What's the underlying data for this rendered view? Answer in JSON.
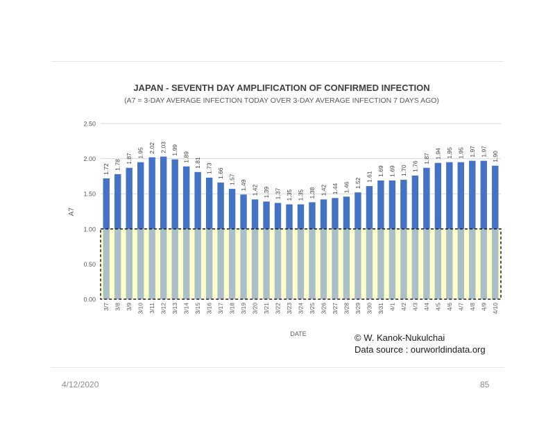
{
  "slide": {
    "date": "4/12/2020",
    "page_number": "85"
  },
  "credits": {
    "author": "© W. Kanok-Nukulchai",
    "source": "Data source : ourworldindata.org"
  },
  "colors": {
    "bar": "#4472C4",
    "threshold_fill": "#FFFFCC",
    "text": "#595959",
    "title": "#404040",
    "gridline": "#d9d9d9"
  },
  "chart_data": {
    "type": "bar",
    "title": "JAPAN  - SEVENTH DAY AMPLIFICATION OF CONFIRMED INFECTION",
    "subtitle": "(A7 = 3-DAY AVERAGE INFECTION TODAY OVER 3-DAY AVERAGE INFECTION 7 DAYS AGO)",
    "xlabel": "DATE",
    "ylabel": "A7",
    "ylim": [
      0,
      2.5
    ],
    "yticks": [
      "0.00",
      "0.50",
      "1.00",
      "1.50",
      "2.00",
      "2.50"
    ],
    "grid": true,
    "threshold": 1.0,
    "categories": [
      "3/7",
      "3/8",
      "3/9",
      "3/10",
      "3/11",
      "3/12",
      "3/13",
      "3/14",
      "3/15",
      "3/16",
      "3/17",
      "3/18",
      "3/19",
      "3/20",
      "3/21",
      "3/22",
      "3/23",
      "3/24",
      "3/25",
      "3/26",
      "3/27",
      "3/28",
      "3/29",
      "3/30",
      "3/31",
      "4/1",
      "4/2",
      "4/3",
      "4/4",
      "4/5",
      "4/6",
      "4/7",
      "4/8",
      "4/9",
      "4/10"
    ],
    "values": [
      1.72,
      1.78,
      1.87,
      1.95,
      2.02,
      2.03,
      1.99,
      1.89,
      1.81,
      1.73,
      1.66,
      1.57,
      1.49,
      1.42,
      1.39,
      1.37,
      1.35,
      1.35,
      1.38,
      1.42,
      1.44,
      1.46,
      1.52,
      1.61,
      1.69,
      1.69,
      1.7,
      1.76,
      1.87,
      1.94,
      1.95,
      1.95,
      1.97,
      1.97,
      1.9
    ],
    "labels": [
      "1.72",
      "1.78",
      "1.87",
      "1.95",
      "2.02",
      "2.03",
      "1.99",
      "1.89",
      "1.81",
      "1.73",
      "1.66",
      "1.57",
      "1.49",
      "1.42",
      "1.39",
      "1.37",
      "1.35",
      "1.35",
      "1.38",
      "1.42",
      "1.44",
      "1.46",
      "1.52",
      "1.61",
      "1.69",
      "1.69",
      "1.70",
      "1.76",
      "1.87",
      "1.94",
      "1.95",
      "1.95",
      "1.97",
      "1.97",
      "1.90"
    ]
  }
}
